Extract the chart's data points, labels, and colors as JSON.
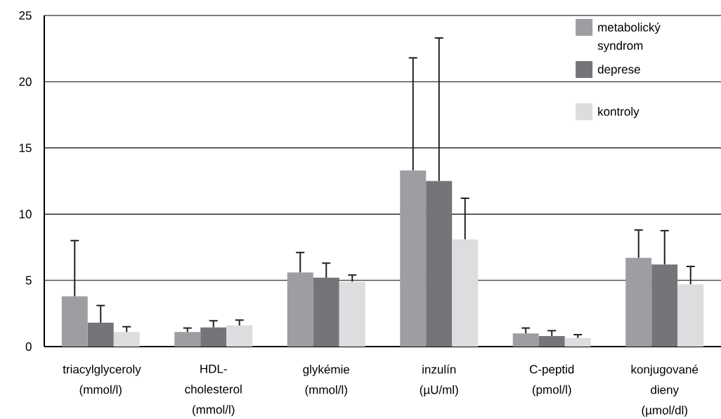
{
  "chart_data": {
    "type": "bar",
    "categories": [
      "triacylglyceroly (mmol/l)",
      "HDL-cholesterol (mmol/l)",
      "glykémie (mmol/l)",
      "inzulín (µU/ml)",
      "C-peptid (pmol/l)",
      "konjugované dieny (µmol/dl)"
    ],
    "series": [
      {
        "name": "metabolický syndrom",
        "color": "#9d9ea2",
        "values": [
          3.8,
          1.1,
          5.6,
          13.3,
          1.0,
          6.7
        ],
        "errors": [
          [
            3.8,
            8.0
          ],
          [
            1.1,
            1.4
          ],
          [
            5.6,
            7.1
          ],
          [
            13.3,
            21.8
          ],
          [
            1.0,
            1.4
          ],
          [
            6.7,
            8.8
          ]
        ]
      },
      {
        "name": "deprese",
        "color": "#747579",
        "values": [
          1.8,
          1.45,
          5.2,
          12.5,
          0.8,
          6.2
        ],
        "errors": [
          [
            1.8,
            3.1
          ],
          [
            1.45,
            1.95
          ],
          [
            5.2,
            6.3
          ],
          [
            12.5,
            23.3
          ],
          [
            0.8,
            1.2
          ],
          [
            6.2,
            8.75
          ]
        ]
      },
      {
        "name": "kontroly",
        "color": "#dcdddf",
        "values": [
          1.1,
          1.6,
          4.9,
          8.1,
          0.65,
          4.7
        ],
        "errors": [
          [
            1.1,
            1.5
          ],
          [
            1.6,
            2.0
          ],
          [
            4.9,
            5.4
          ],
          [
            8.1,
            11.2
          ],
          [
            0.65,
            0.9
          ],
          [
            4.7,
            6.05
          ]
        ]
      }
    ],
    "ylim": [
      0,
      25
    ],
    "yticks": [
      0,
      5,
      10,
      15,
      20,
      25
    ],
    "grid": "y",
    "legend": "top right"
  }
}
